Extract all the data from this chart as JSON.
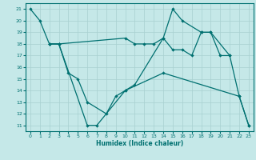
{
  "xlabel": "Humidex (Indice chaleur)",
  "xlim": [
    -0.5,
    23.5
  ],
  "ylim": [
    10.5,
    21.5
  ],
  "yticks": [
    11,
    12,
    13,
    14,
    15,
    16,
    17,
    18,
    19,
    20,
    21
  ],
  "xticks": [
    0,
    1,
    2,
    3,
    4,
    5,
    6,
    7,
    8,
    9,
    10,
    11,
    12,
    13,
    14,
    15,
    16,
    17,
    18,
    19,
    20,
    21,
    22,
    23
  ],
  "bg_color": "#c5e8e8",
  "grid_color": "#a8d0d0",
  "line_color": "#007070",
  "line1": {
    "x": [
      0,
      1,
      2,
      3,
      6,
      7,
      10,
      11,
      14,
      15,
      16,
      18,
      19,
      21,
      22,
      23
    ],
    "y": [
      21,
      20,
      18,
      18,
      11,
      11,
      14,
      14.5,
      18.5,
      21,
      20,
      19,
      19,
      17,
      13.5,
      11
    ]
  },
  "line2": {
    "x": [
      2,
      3,
      4,
      5,
      6,
      8,
      9,
      10,
      14,
      22,
      23
    ],
    "y": [
      18,
      18,
      15.5,
      15,
      13,
      12,
      13.5,
      14,
      15.5,
      13.5,
      11
    ]
  },
  "line3": {
    "x": [
      2,
      3,
      10,
      11,
      12,
      13,
      14,
      15,
      16,
      17,
      18,
      19,
      20,
      21
    ],
    "y": [
      18,
      18,
      18.5,
      18,
      18,
      18,
      18.5,
      17.5,
      17.5,
      17,
      19,
      19,
      17,
      17
    ]
  }
}
